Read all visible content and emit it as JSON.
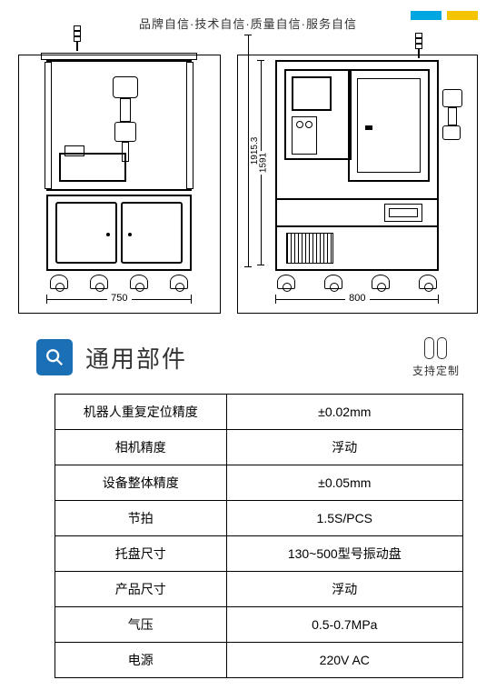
{
  "header": {
    "tagline": "品牌自信·技术自信·质量自信·服务自信",
    "stripe_colors": {
      "left": "#00a6e0",
      "right": "#f5c400"
    }
  },
  "diagrams": {
    "left": {
      "width_label": "750"
    },
    "right": {
      "width_label": "800",
      "height_inner_label": "1591",
      "height_outer_label": "1915.3"
    }
  },
  "section": {
    "icon": "search-icon",
    "title": "通用部件",
    "badge_text": "支持定制",
    "badge_color": "#1a6fb5"
  },
  "spec_table": {
    "rows": [
      {
        "k": "机器人重复定位精度",
        "v": "±0.02mm"
      },
      {
        "k": "相机精度",
        "v": "浮动"
      },
      {
        "k": "设备整体精度",
        "v": "±0.05mm"
      },
      {
        "k": "节拍",
        "v": "1.5S/PCS"
      },
      {
        "k": "托盘尺寸",
        "v": "130~500型号振动盘"
      },
      {
        "k": "产品尺寸",
        "v": "浮动"
      },
      {
        "k": "气压",
        "v": "0.5-0.7MPa"
      },
      {
        "k": "电源",
        "v": "220V AC"
      }
    ]
  }
}
